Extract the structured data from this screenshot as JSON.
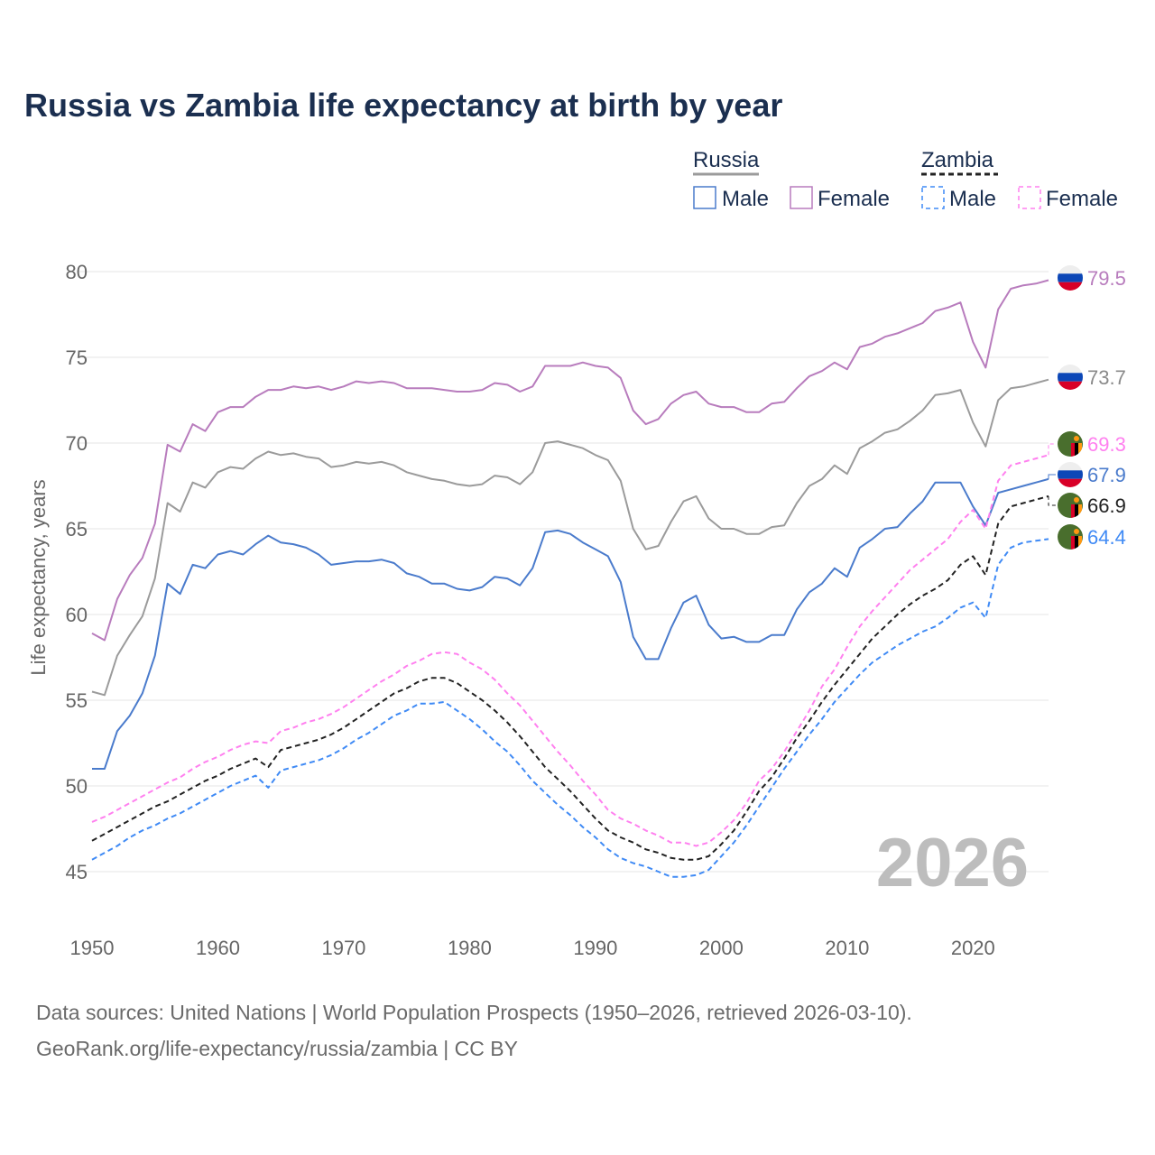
{
  "chart_data": {
    "type": "line",
    "title": "Russia vs Zambia life expectancy at birth by year",
    "xlabel": "",
    "ylabel": "Life expectancy, years",
    "xlim": [
      1950,
      2026
    ],
    "ylim": [
      43,
      81
    ],
    "x_ticks": [
      1950,
      1960,
      1970,
      1980,
      1990,
      2000,
      2010,
      2020
    ],
    "y_ticks": [
      45,
      50,
      55,
      60,
      65,
      70,
      75,
      80
    ],
    "grid": true,
    "legend_placement": "top-right",
    "watermark_year": "2026",
    "legend": {
      "groups": [
        {
          "name": "Russia",
          "items": [
            "Male",
            "Female"
          ]
        },
        {
          "name": "Zambia",
          "items": [
            "Male",
            "Female"
          ]
        }
      ]
    },
    "x_start": 1950,
    "series": [
      {
        "name": "Russia Female",
        "country": "Russia",
        "color": "#b87cbd",
        "dashed": false,
        "end_label": "79.5",
        "values": [
          58.9,
          58.5,
          60.9,
          62.3,
          63.3,
          65.3,
          69.9,
          69.5,
          71.1,
          70.7,
          71.8,
          72.1,
          72.1,
          72.7,
          73.1,
          73.1,
          73.3,
          73.2,
          73.3,
          73.1,
          73.3,
          73.6,
          73.5,
          73.6,
          73.5,
          73.2,
          73.2,
          73.2,
          73.1,
          73.0,
          73.0,
          73.1,
          73.5,
          73.4,
          73.0,
          73.3,
          74.5,
          74.5,
          74.5,
          74.7,
          74.5,
          74.4,
          73.8,
          71.9,
          71.1,
          71.4,
          72.3,
          72.8,
          73.0,
          72.3,
          72.1,
          72.1,
          71.8,
          71.8,
          72.3,
          72.4,
          73.2,
          73.9,
          74.2,
          74.7,
          74.3,
          75.6,
          75.8,
          76.2,
          76.4,
          76.7,
          77.0,
          77.7,
          77.9,
          78.2,
          75.9,
          74.4,
          77.8,
          79.0,
          79.2,
          79.3,
          79.5
        ]
      },
      {
        "name": "Russia Total",
        "country": "Russia",
        "color": "#9b9b9b",
        "dashed": false,
        "end_label": "73.7",
        "values": [
          55.5,
          55.3,
          57.6,
          58.8,
          59.9,
          62.1,
          66.5,
          66.0,
          67.7,
          67.4,
          68.3,
          68.6,
          68.5,
          69.1,
          69.5,
          69.3,
          69.4,
          69.2,
          69.1,
          68.6,
          68.7,
          68.9,
          68.8,
          68.9,
          68.7,
          68.3,
          68.1,
          67.9,
          67.8,
          67.6,
          67.5,
          67.6,
          68.1,
          68.0,
          67.6,
          68.3,
          70.0,
          70.1,
          69.9,
          69.7,
          69.3,
          69.0,
          67.8,
          65.0,
          63.8,
          64.0,
          65.4,
          66.6,
          66.9,
          65.6,
          65.0,
          65.0,
          64.7,
          64.7,
          65.1,
          65.2,
          66.5,
          67.5,
          67.9,
          68.7,
          68.2,
          69.7,
          70.1,
          70.6,
          70.8,
          71.3,
          71.9,
          72.8,
          72.9,
          73.1,
          71.2,
          69.8,
          72.5,
          73.2,
          73.3,
          73.5,
          73.7
        ]
      },
      {
        "name": "Russia Male",
        "country": "Russia",
        "color": "#4a7bcc",
        "dashed": false,
        "end_label": "67.9",
        "values": [
          51.0,
          51.0,
          53.2,
          54.1,
          55.4,
          57.6,
          61.8,
          61.2,
          62.9,
          62.7,
          63.5,
          63.7,
          63.5,
          64.1,
          64.6,
          64.2,
          64.1,
          63.9,
          63.5,
          62.9,
          63.0,
          63.1,
          63.1,
          63.2,
          63.0,
          62.4,
          62.2,
          61.8,
          61.8,
          61.5,
          61.4,
          61.6,
          62.2,
          62.1,
          61.7,
          62.7,
          64.8,
          64.9,
          64.7,
          64.2,
          63.8,
          63.4,
          61.9,
          58.7,
          57.4,
          57.4,
          59.2,
          60.7,
          61.1,
          59.4,
          58.6,
          58.7,
          58.4,
          58.4,
          58.8,
          58.8,
          60.3,
          61.3,
          61.8,
          62.7,
          62.2,
          63.9,
          64.4,
          65.0,
          65.1,
          65.9,
          66.6,
          67.7,
          67.7,
          67.7,
          66.3,
          65.2,
          67.1,
          67.3,
          67.5,
          67.7,
          67.9
        ]
      },
      {
        "name": "Zambia Female",
        "country": "Zambia",
        "color": "#ff80ef",
        "dashed": true,
        "end_label": "69.3",
        "values": [
          47.9,
          48.2,
          48.6,
          49.0,
          49.4,
          49.8,
          50.2,
          50.5,
          51.0,
          51.4,
          51.7,
          52.1,
          52.4,
          52.6,
          52.5,
          53.2,
          53.4,
          53.7,
          53.9,
          54.2,
          54.6,
          55.1,
          55.6,
          56.1,
          56.5,
          57.0,
          57.3,
          57.7,
          57.8,
          57.7,
          57.2,
          56.8,
          56.2,
          55.4,
          54.7,
          53.8,
          52.9,
          52.0,
          51.2,
          50.3,
          49.5,
          48.6,
          48.1,
          47.8,
          47.4,
          47.1,
          46.7,
          46.7,
          46.5,
          46.7,
          47.3,
          48.0,
          49.0,
          50.3,
          51.0,
          52.0,
          53.2,
          54.4,
          55.8,
          56.8,
          58.1,
          59.3,
          60.2,
          61.0,
          61.8,
          62.6,
          63.2,
          63.8,
          64.4,
          65.4,
          66.1,
          65.0,
          67.8,
          68.7,
          68.9,
          69.1,
          69.3
        ]
      },
      {
        "name": "Zambia Total",
        "country": "Zambia",
        "color": "#222222",
        "dashed": true,
        "end_label": "66.9",
        "values": [
          46.8,
          47.2,
          47.6,
          48.0,
          48.4,
          48.8,
          49.1,
          49.5,
          49.9,
          50.3,
          50.6,
          51.0,
          51.3,
          51.6,
          51.1,
          52.1,
          52.3,
          52.5,
          52.7,
          53.0,
          53.4,
          53.9,
          54.4,
          54.9,
          55.4,
          55.7,
          56.1,
          56.3,
          56.3,
          56.0,
          55.5,
          55.0,
          54.4,
          53.7,
          52.9,
          52.0,
          51.1,
          50.4,
          49.7,
          48.9,
          48.1,
          47.4,
          47.0,
          46.7,
          46.3,
          46.1,
          45.8,
          45.7,
          45.7,
          45.9,
          46.6,
          47.4,
          48.5,
          49.7,
          50.5,
          51.6,
          52.8,
          53.8,
          54.9,
          55.9,
          56.8,
          57.7,
          58.6,
          59.3,
          60.0,
          60.6,
          61.1,
          61.5,
          62.0,
          62.9,
          63.4,
          62.3,
          65.3,
          66.3,
          66.5,
          66.7,
          66.9
        ]
      },
      {
        "name": "Zambia Male",
        "country": "Zambia",
        "color": "#3f8af5",
        "dashed": true,
        "end_label": "64.4",
        "values": [
          45.7,
          46.1,
          46.5,
          47.0,
          47.4,
          47.7,
          48.1,
          48.4,
          48.8,
          49.2,
          49.6,
          50.0,
          50.3,
          50.6,
          49.9,
          50.9,
          51.1,
          51.3,
          51.5,
          51.8,
          52.2,
          52.7,
          53.1,
          53.6,
          54.1,
          54.4,
          54.8,
          54.8,
          54.9,
          54.4,
          53.9,
          53.3,
          52.6,
          52.0,
          51.2,
          50.3,
          49.6,
          48.9,
          48.3,
          47.6,
          47.0,
          46.3,
          45.8,
          45.5,
          45.3,
          45.0,
          44.7,
          44.7,
          44.8,
          45.1,
          45.9,
          46.7,
          47.7,
          48.8,
          49.9,
          51.0,
          52.0,
          53.0,
          53.9,
          54.9,
          55.7,
          56.5,
          57.2,
          57.7,
          58.2,
          58.6,
          59.0,
          59.3,
          59.8,
          60.4,
          60.7,
          59.8,
          62.9,
          63.9,
          64.2,
          64.3,
          64.4
        ]
      }
    ]
  },
  "footer": {
    "line1": "Data sources: United Nations | World Population Prospects (1950–2026, retrieved 2026-03-10).",
    "line2": "GeoRank.org/life-expectancy/russia/zambia | CC BY"
  }
}
